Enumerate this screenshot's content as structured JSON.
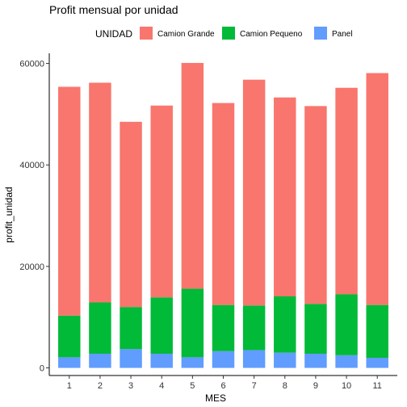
{
  "chart_data": {
    "type": "bar",
    "stacked": true,
    "title": "Profit mensual por unidad",
    "xlabel": "MES",
    "ylabel": "profit_unidad",
    "categories": [
      "1",
      "2",
      "3",
      "4",
      "5",
      "6",
      "7",
      "8",
      "9",
      "10",
      "11"
    ],
    "ylim": [
      0,
      62000
    ],
    "yticks": [
      0,
      20000,
      40000,
      60000
    ],
    "grid": false,
    "legend": {
      "title": "UNIDAD",
      "position": "top"
    },
    "series": [
      {
        "name": "Camion Grande",
        "color": "#F8766D",
        "values": [
          45100,
          43300,
          36500,
          37800,
          44500,
          39800,
          44500,
          39200,
          39000,
          40700,
          45700
        ]
      },
      {
        "name": "Camion Pequeno",
        "color": "#00BA38",
        "values": [
          8200,
          10100,
          8300,
          11100,
          13500,
          9100,
          8800,
          11100,
          9800,
          12000,
          10400
        ]
      },
      {
        "name": "Panel",
        "color": "#619CFF",
        "values": [
          2100,
          2800,
          3700,
          2800,
          2100,
          3300,
          3500,
          3000,
          2800,
          2500,
          2000
        ]
      }
    ]
  }
}
